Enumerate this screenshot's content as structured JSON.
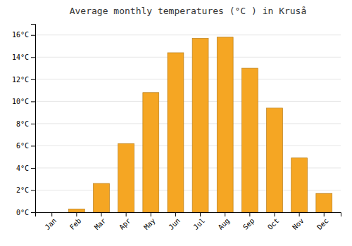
{
  "chart_data": {
    "type": "bar",
    "title": "Average monthly temperatures (°C ) in Kruså",
    "categories": [
      "Jan",
      "Feb",
      "Mar",
      "Apr",
      "May",
      "Jun",
      "Jul",
      "Aug",
      "Sep",
      "Oct",
      "Nov",
      "Dec"
    ],
    "values": [
      0.0,
      0.3,
      2.6,
      6.2,
      10.8,
      14.4,
      15.7,
      15.8,
      13.0,
      9.4,
      4.9,
      1.7
    ],
    "color": "#F5A623",
    "ylim": [
      0,
      17
    ],
    "yticks": [
      {
        "value": 0,
        "label": "0°C"
      },
      {
        "value": 2,
        "label": "2°C"
      },
      {
        "value": 4,
        "label": "4°C"
      },
      {
        "value": 6,
        "label": "6°C"
      },
      {
        "value": 8,
        "label": "8°C"
      },
      {
        "value": 10,
        "label": "10°C"
      },
      {
        "value": 12,
        "label": "12°C"
      },
      {
        "value": 14,
        "label": "14°C"
      },
      {
        "value": 16,
        "label": "16°C"
      }
    ],
    "grid": true
  }
}
